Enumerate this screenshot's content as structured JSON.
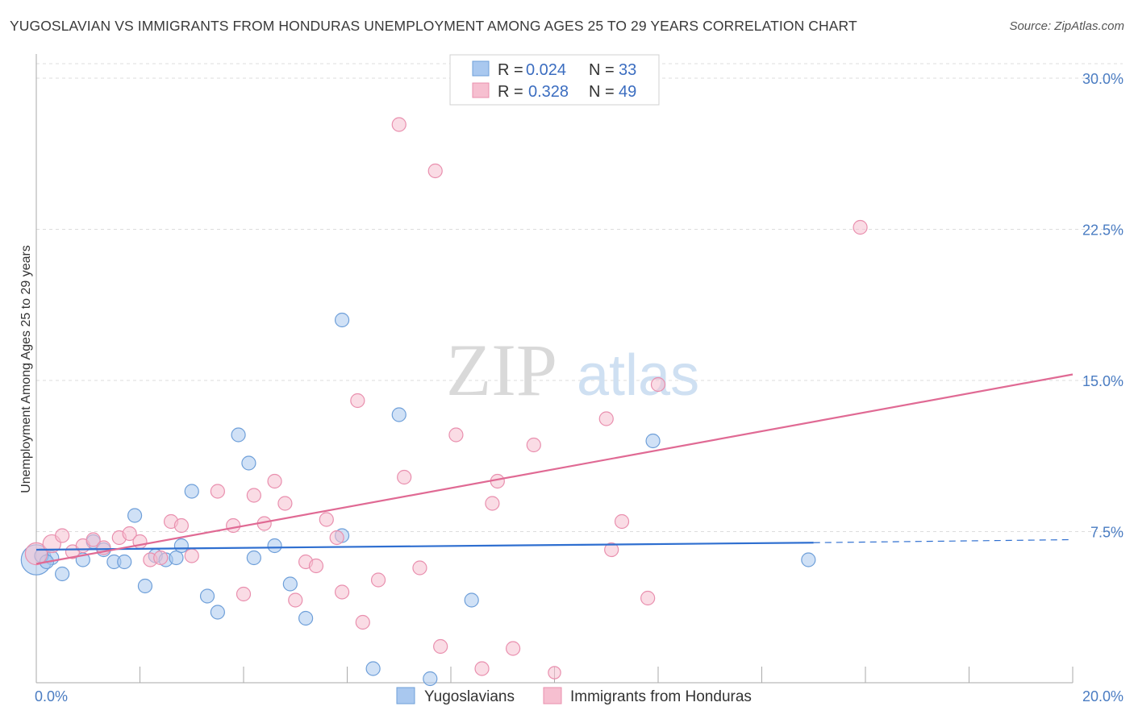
{
  "title": "YUGOSLAVIAN VS IMMIGRANTS FROM HONDURAS UNEMPLOYMENT AMONG AGES 25 TO 29 YEARS CORRELATION CHART",
  "source": "Source: ZipAtlas.com",
  "watermark": {
    "zip": "ZIP",
    "atlas": "atlas"
  },
  "colors": {
    "blue_fill": "#a9c8ef",
    "blue_stroke": "#6e9fd9",
    "blue_line": "#2f6fd0",
    "pink_fill": "#f6bfd0",
    "pink_stroke": "#e98fae",
    "pink_line": "#e06a94",
    "grid": "#dddddd",
    "tick_text": "#4a7cc2"
  },
  "legend": {
    "r_label": "R =",
    "n_label": "N =",
    "rows": [
      {
        "r": "0.024",
        "n": "33"
      },
      {
        "r": "0.328",
        "n": "49"
      }
    ]
  },
  "chart_data": {
    "type": "scatter",
    "title": "YUGOSLAVIAN VS IMMIGRANTS FROM HONDURAS UNEMPLOYMENT AMONG AGES 25 TO 29 YEARS CORRELATION CHART",
    "xlabel": "",
    "ylabel": "Unemployment Among Ages 25 to 29 years",
    "xlim": [
      0,
      20
    ],
    "ylim": [
      0,
      30
    ],
    "x_tick_labels": [
      "0.0%",
      "20.0%"
    ],
    "y_ticks": [
      7.5,
      15,
      22.5,
      30
    ],
    "y_tick_labels": [
      "7.5%",
      "15.0%",
      "22.5%",
      "30.0%"
    ],
    "grid": true,
    "legend_position": "top-center",
    "series": [
      {
        "name": "Yugoslavians",
        "r": 0.024,
        "n": 33,
        "trend": {
          "x0": 0,
          "y0": 6.6,
          "x1": 15,
          "y1": 6.95,
          "dashed_to_x": 20,
          "dashed_to_y": 7.1
        },
        "points": [
          [
            0.0,
            6.1,
            2.2
          ],
          [
            0.3,
            6.2,
            1
          ],
          [
            0.5,
            5.4,
            1
          ],
          [
            0.9,
            6.1,
            1
          ],
          [
            1.1,
            7.0,
            1
          ],
          [
            1.3,
            6.6,
            1
          ],
          [
            1.5,
            6.0,
            1
          ],
          [
            1.7,
            6.0,
            1
          ],
          [
            1.9,
            8.3,
            1
          ],
          [
            2.1,
            4.8,
            1
          ],
          [
            2.3,
            6.3,
            1
          ],
          [
            2.5,
            6.1,
            1
          ],
          [
            2.7,
            6.2,
            1
          ],
          [
            2.8,
            6.8,
            1
          ],
          [
            3.0,
            9.5,
            1
          ],
          [
            3.3,
            4.3,
            1
          ],
          [
            3.5,
            3.5,
            1
          ],
          [
            3.9,
            12.3,
            1
          ],
          [
            4.1,
            10.9,
            1
          ],
          [
            4.2,
            6.2,
            1
          ],
          [
            4.6,
            6.8,
            1
          ],
          [
            4.9,
            4.9,
            1
          ],
          [
            5.2,
            3.2,
            1
          ],
          [
            5.9,
            18.0,
            1
          ],
          [
            5.9,
            7.3,
            1
          ],
          [
            6.5,
            0.7,
            1
          ],
          [
            7.0,
            13.3,
            1
          ],
          [
            7.6,
            0.2,
            1
          ],
          [
            8.4,
            4.1,
            1
          ],
          [
            11.9,
            12.0,
            1
          ],
          [
            14.9,
            6.1,
            1
          ],
          [
            0.1,
            6.3,
            1
          ],
          [
            0.2,
            6.0,
            1
          ]
        ]
      },
      {
        "name": "Immigrants from Honduras",
        "r": 0.328,
        "n": 49,
        "trend": {
          "x0": 0,
          "y0": 5.9,
          "x1": 20,
          "y1": 15.3
        },
        "points": [
          [
            0.0,
            6.4,
            1.6
          ],
          [
            0.3,
            6.9,
            1.3
          ],
          [
            0.5,
            7.3,
            1
          ],
          [
            0.7,
            6.5,
            1
          ],
          [
            0.9,
            6.8,
            1
          ],
          [
            1.1,
            7.1,
            1
          ],
          [
            1.3,
            6.7,
            1
          ],
          [
            1.6,
            7.2,
            1
          ],
          [
            1.8,
            7.4,
            1
          ],
          [
            2.0,
            7.0,
            1
          ],
          [
            2.2,
            6.1,
            1
          ],
          [
            2.4,
            6.2,
            1
          ],
          [
            2.6,
            8.0,
            1
          ],
          [
            2.8,
            7.8,
            1
          ],
          [
            3.0,
            6.3,
            1
          ],
          [
            3.5,
            9.5,
            1
          ],
          [
            3.8,
            7.8,
            1
          ],
          [
            4.0,
            4.4,
            1
          ],
          [
            4.2,
            9.3,
            1
          ],
          [
            4.4,
            7.9,
            1
          ],
          [
            4.6,
            10.0,
            1
          ],
          [
            4.8,
            8.9,
            1
          ],
          [
            5.0,
            4.1,
            1
          ],
          [
            5.2,
            6.0,
            1
          ],
          [
            5.4,
            5.8,
            1
          ],
          [
            5.6,
            8.1,
            1
          ],
          [
            5.8,
            7.2,
            1
          ],
          [
            5.9,
            4.5,
            1
          ],
          [
            6.2,
            14.0,
            1
          ],
          [
            6.3,
            3.0,
            1
          ],
          [
            6.6,
            5.1,
            1
          ],
          [
            7.0,
            27.7,
            1
          ],
          [
            7.1,
            10.2,
            1
          ],
          [
            7.4,
            5.7,
            1
          ],
          [
            7.7,
            25.4,
            1
          ],
          [
            7.8,
            1.8,
            1
          ],
          [
            8.1,
            12.3,
            1
          ],
          [
            8.6,
            0.7,
            1
          ],
          [
            8.8,
            8.9,
            1
          ],
          [
            8.9,
            10.0,
            1
          ],
          [
            9.2,
            1.7,
            1
          ],
          [
            9.6,
            11.8,
            1
          ],
          [
            11.0,
            13.1,
            1
          ],
          [
            11.1,
            6.6,
            1
          ],
          [
            11.3,
            8.0,
            1
          ],
          [
            11.8,
            4.2,
            1
          ],
          [
            12.0,
            14.8,
            1
          ],
          [
            15.9,
            22.6,
            1
          ],
          [
            10.0,
            0.5,
            0.9
          ]
        ]
      }
    ]
  }
}
